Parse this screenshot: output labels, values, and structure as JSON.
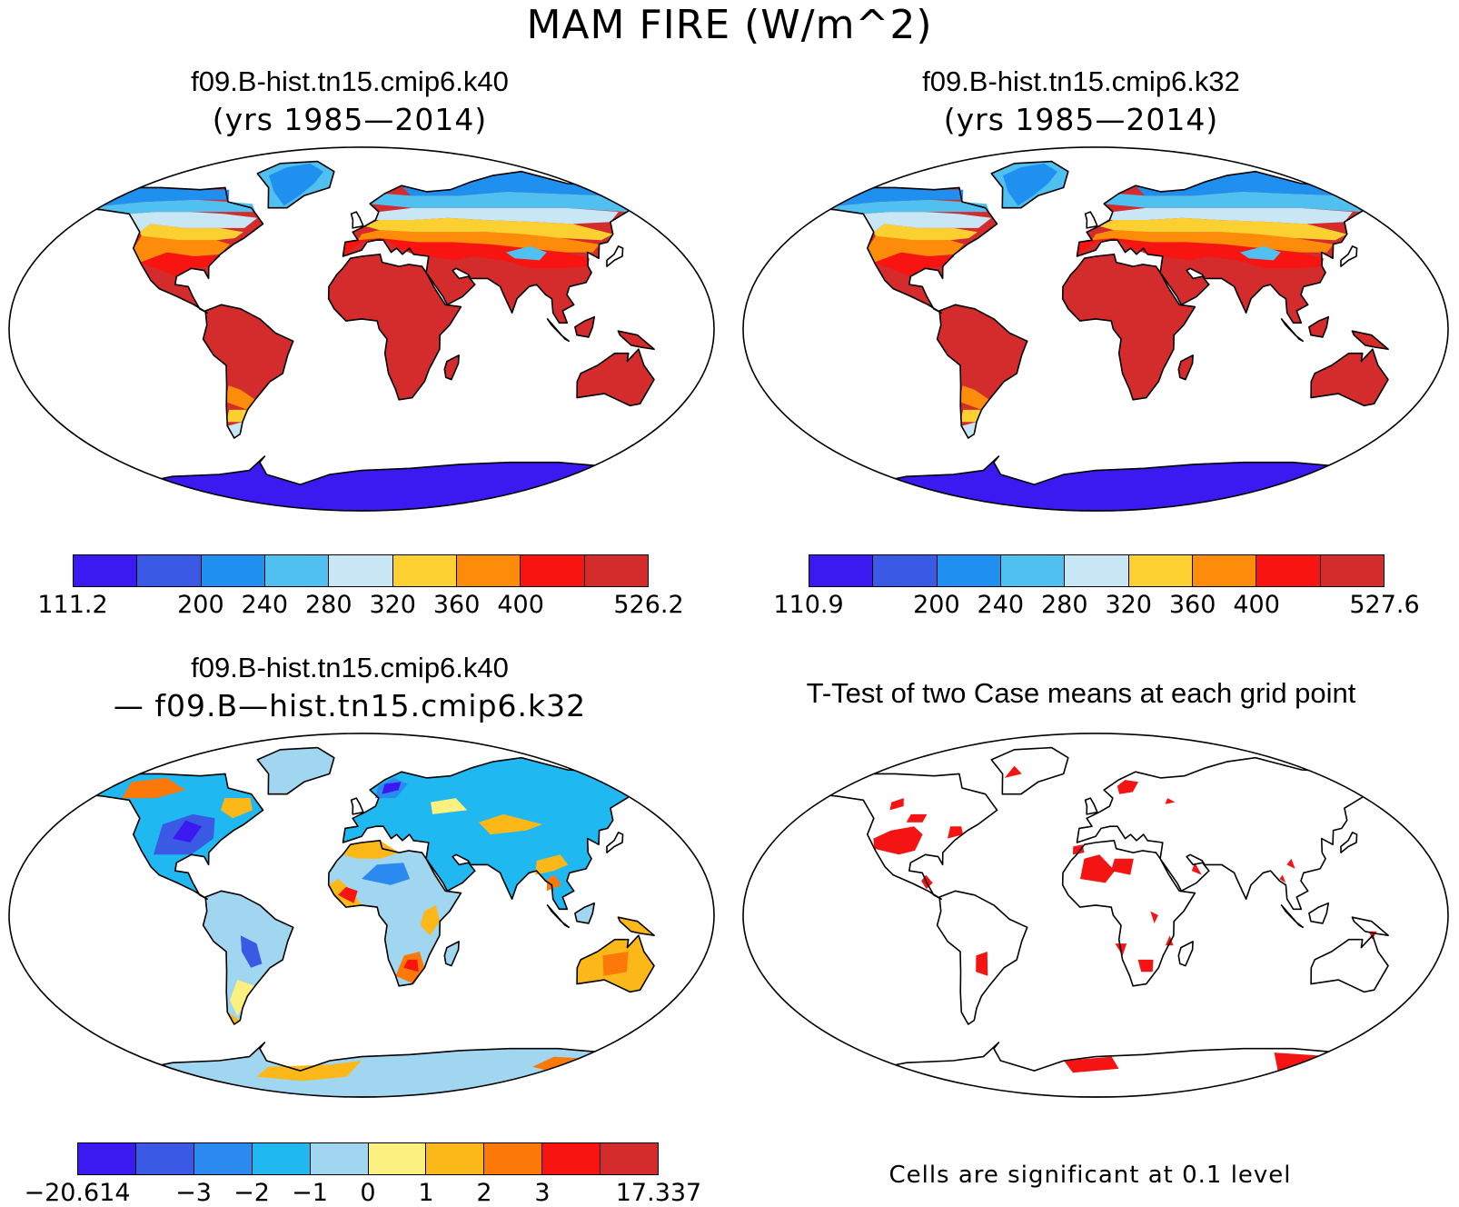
{
  "figure_title": "MAM FIRE (W/m^2)",
  "panels": [
    {
      "title": "f09.B-hist.tn15.cmip6.k40",
      "subtitle": "(yrs 1985—2014)",
      "type": "mean",
      "colorbar": {
        "colors": [
          "#3a1af0",
          "#3a5ae6",
          "#2090f0",
          "#50c0f0",
          "#c8e6f4",
          "#fcd030",
          "#fc8c0a",
          "#f81410",
          "#d42c2c"
        ],
        "ticks": [
          "111.2",
          "200",
          "240",
          "280",
          "320",
          "360",
          "400",
          "526.2"
        ],
        "tick_bounds": [
          0,
          2,
          3,
          4,
          5,
          6,
          7,
          9
        ]
      }
    },
    {
      "title": "f09.B-hist.tn15.cmip6.k32",
      "subtitle": "(yrs 1985—2014)",
      "type": "mean",
      "colorbar": {
        "colors": [
          "#3a1af0",
          "#3a5ae6",
          "#2090f0",
          "#50c0f0",
          "#c8e6f4",
          "#fcd030",
          "#fc8c0a",
          "#f81410",
          "#d42c2c"
        ],
        "ticks": [
          "110.9",
          "200",
          "240",
          "280",
          "320",
          "360",
          "400",
          "527.6"
        ],
        "tick_bounds": [
          0,
          2,
          3,
          4,
          5,
          6,
          7,
          9
        ]
      }
    },
    {
      "title": "f09.B-hist.tn15.cmip6.k40",
      "subtitle": "— f09.B—hist.tn15.cmip6.k32",
      "type": "difference",
      "colorbar": {
        "colors": [
          "#3a1af0",
          "#3a5ae6",
          "#2a8af0",
          "#20b8f0",
          "#a0d6f0",
          "#fcf080",
          "#fcb818",
          "#fc7808",
          "#f81410",
          "#d42c2c"
        ],
        "ticks": [
          "−20.614",
          "−3",
          "−2",
          "−1",
          "0",
          "1",
          "2",
          "3",
          "17.337"
        ],
        "tick_bounds": [
          0,
          2,
          3,
          4,
          5,
          6,
          7,
          8,
          10
        ]
      }
    },
    {
      "title": "T-Test of two Case means at each grid point",
      "subtitle": "",
      "type": "ttest",
      "note": "Cells are significant at 0.1 level"
    }
  ],
  "colors": {
    "significant": "#f41414",
    "coast": "#000000"
  }
}
